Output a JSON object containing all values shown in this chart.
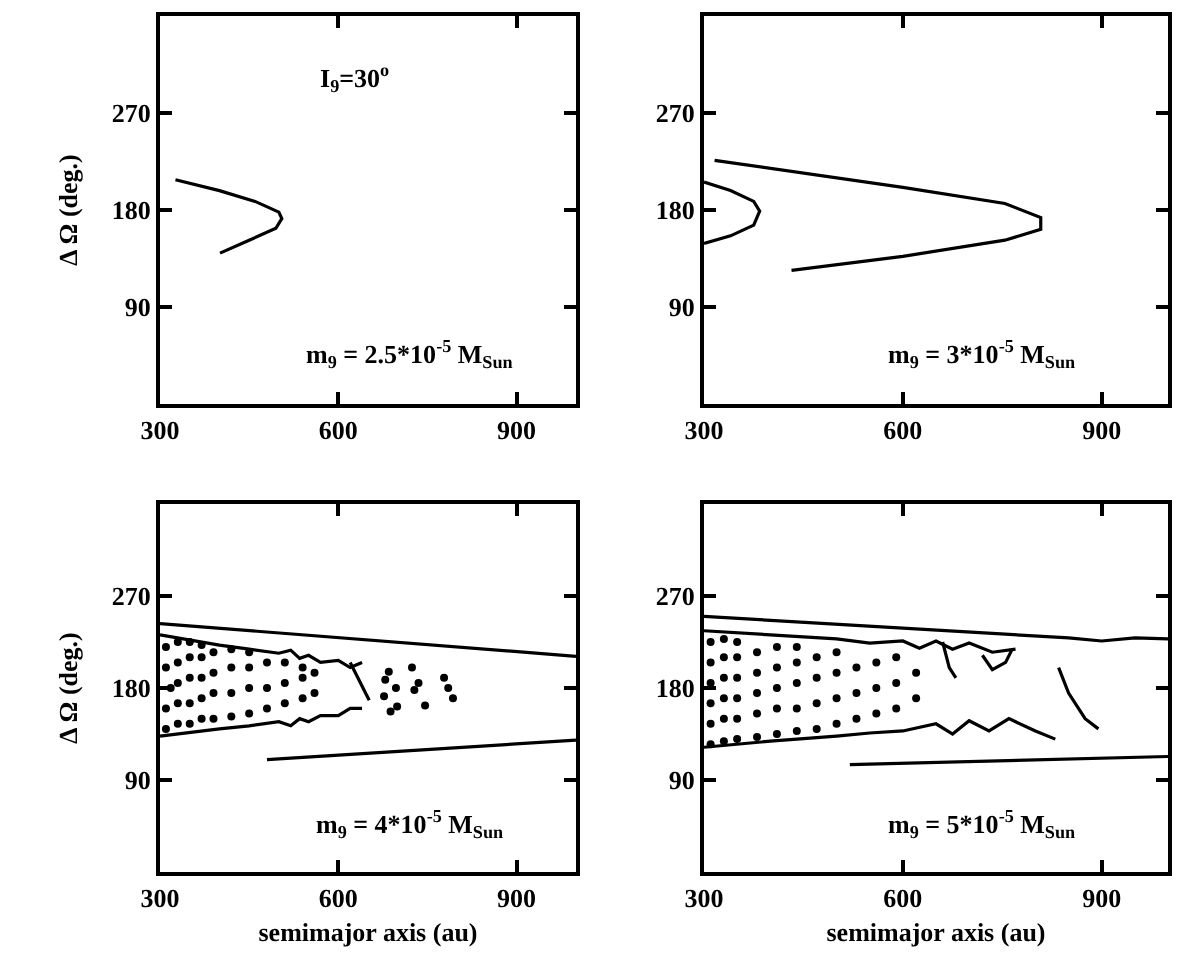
{
  "chart_data": [
    {
      "type": "line",
      "ylabel": "Δ Ω (deg.)",
      "xlim": [
        300,
        1000
      ],
      "xticks": [
        300,
        600,
        900
      ],
      "ylim": [
        0,
        360
      ],
      "yticks": [
        90,
        180,
        270
      ],
      "grid": false,
      "annotations": [
        "I$_{9}$=30$^{o}$",
        "m$_{9}$ = 2.5*10$^{-5}$ M$_{Sun}$"
      ],
      "series": [
        {
          "color": "#000000",
          "marker": "none",
          "line_style": "solid",
          "x": [
            326,
            400,
            460,
            500,
            505,
            495,
            450,
            401
          ],
          "values": [
            208,
            198,
            188,
            178,
            172,
            163,
            152,
            140
          ]
        }
      ]
    },
    {
      "type": "line",
      "xlim": [
        300,
        1000
      ],
      "xticks": [
        300,
        600,
        900
      ],
      "ylim": [
        0,
        360
      ],
      "yticks": [
        90,
        180,
        270
      ],
      "grid": false,
      "annotations": [
        "m$_{9}$ = 3*10$^{-5}$ M$_{Sun}$"
      ],
      "series": [
        {
          "color": "#000000",
          "marker": "none",
          "line_style": "solid",
          "x": [
            300,
            340,
            375,
            384,
            375,
            340,
            300
          ],
          "values": [
            206,
            198,
            188,
            179,
            166,
            156,
            149
          ]
        },
        {
          "color": "#000000",
          "marker": "none",
          "line_style": "solid",
          "x": [
            316,
            600,
            754,
            808,
            808,
            754,
            600,
            432
          ],
          "values": [
            226,
            201,
            186,
            173,
            162,
            152,
            137,
            124
          ]
        }
      ]
    },
    {
      "type": "line",
      "xlabel": "semimajor axis (au)",
      "ylabel": "Δ Ω (deg.)",
      "xlim": [
        300,
        1000
      ],
      "xticks": [
        300,
        600,
        900
      ],
      "ylim": [
        0,
        360
      ],
      "yticks": [
        90,
        180,
        270
      ],
      "grid": false,
      "annotations": [
        "m$_{9}$ = 4*10$^{-5}$ M$_{Sun}$"
      ],
      "series": [
        {
          "color": "#000000",
          "marker": "none",
          "line_style": "solid",
          "x": [
            300,
            1000
          ],
          "values": [
            243,
            211
          ]
        },
        {
          "color": "#000000",
          "marker": "none",
          "line_style": "solid",
          "x": [
            480,
            1000
          ],
          "values": [
            110,
            129
          ]
        },
        {
          "color": "#000000",
          "marker": "none",
          "line_style": "solid",
          "x": [
            300,
            400,
            450,
            500,
            520,
            535,
            550,
            570,
            600,
            620,
            640
          ],
          "values": [
            232,
            222,
            218,
            214,
            217,
            209,
            212,
            205,
            207,
            200,
            205
          ]
        },
        {
          "color": "#000000",
          "marker": "none",
          "line_style": "solid",
          "x": [
            300,
            400,
            450,
            500,
            520,
            535,
            550,
            570,
            600,
            620,
            640
          ],
          "values": [
            133,
            140,
            143,
            147,
            143,
            150,
            147,
            153,
            153,
            160,
            160
          ]
        },
        {
          "color": "#000000",
          "marker": "none",
          "line_style": "solid",
          "x": [
            620,
            652
          ],
          "values": [
            205,
            168
          ]
        },
        {
          "type": "scatter",
          "color": "#000000",
          "marker": "circle",
          "x": [
            685,
            697,
            699,
            688,
            677,
            679,
            724,
            735,
            746,
            728,
            778,
            785,
            793
          ],
          "values": [
            196,
            180,
            162,
            157,
            172,
            188,
            200,
            185,
            163,
            178,
            190,
            180,
            170
          ]
        },
        {
          "type": "scatter",
          "color": "#000000",
          "marker": "circle",
          "x": [
            310,
            310,
            318,
            310,
            310,
            330,
            330,
            330,
            330,
            330,
            350,
            350,
            350,
            350,
            350,
            370,
            370,
            370,
            370,
            370,
            390,
            390,
            390,
            390,
            420,
            420,
            420,
            420,
            450,
            450,
            450,
            450,
            480,
            480,
            480,
            510,
            510,
            510,
            540,
            540,
            540,
            560,
            560
          ],
          "values": [
            140,
            160,
            180,
            200,
            220,
            145,
            165,
            185,
            205,
            225,
            145,
            165,
            190,
            210,
            225,
            150,
            170,
            190,
            210,
            222,
            150,
            175,
            195,
            215,
            152,
            175,
            200,
            218,
            155,
            180,
            200,
            215,
            160,
            180,
            205,
            165,
            185,
            205,
            170,
            190,
            200,
            175,
            195
          ]
        }
      ]
    },
    {
      "type": "line",
      "xlabel": "semimajor axis (au)",
      "xlim": [
        300,
        1000
      ],
      "xticks": [
        300,
        600,
        900
      ],
      "ylim": [
        0,
        360
      ],
      "yticks": [
        90,
        180,
        270
      ],
      "grid": false,
      "annotations": [
        "m$_{9}$ = 5*10$^{-5}$ M$_{Sun}$"
      ],
      "series": [
        {
          "color": "#000000",
          "marker": "none",
          "line_style": "solid",
          "x": [
            300,
            850,
            900,
            950,
            1000
          ],
          "values": [
            250,
            229,
            226,
            229,
            228
          ]
        },
        {
          "color": "#000000",
          "marker": "none",
          "line_style": "solid",
          "x": [
            520,
            1000
          ],
          "values": [
            105,
            113
          ]
        },
        {
          "color": "#000000",
          "marker": "none",
          "line_style": "solid",
          "x": [
            300,
            400,
            500,
            550,
            600,
            625,
            650,
            675,
            700,
            735,
            770
          ],
          "values": [
            236,
            232,
            228,
            224,
            226,
            219,
            226,
            218,
            224,
            215,
            218
          ]
        },
        {
          "color": "#000000",
          "marker": "none",
          "line_style": "solid",
          "x": [
            300,
            400,
            500,
            550,
            600,
            650,
            675,
            700,
            730,
            760,
            800,
            830
          ],
          "values": [
            122,
            128,
            133,
            136,
            138,
            145,
            135,
            148,
            138,
            150,
            138,
            130
          ]
        },
        {
          "color": "#000000",
          "marker": "none",
          "line_style": "solid",
          "x": [
            660,
            670,
            680
          ],
          "values": [
            225,
            200,
            190
          ]
        },
        {
          "color": "#000000",
          "marker": "none",
          "line_style": "solid",
          "x": [
            720,
            735,
            755,
            765
          ],
          "values": [
            212,
            198,
            205,
            218
          ]
        },
        {
          "color": "#000000",
          "marker": "none",
          "line_style": "solid",
          "x": [
            835,
            850,
            875,
            895
          ],
          "values": [
            200,
            175,
            150,
            140
          ]
        },
        {
          "type": "scatter",
          "color": "#000000",
          "marker": "circle",
          "x": [
            310,
            310,
            310,
            310,
            310,
            310,
            330,
            330,
            330,
            330,
            330,
            330,
            350,
            350,
            350,
            350,
            350,
            350,
            380,
            380,
            380,
            380,
            380,
            410,
            410,
            410,
            410,
            410,
            440,
            440,
            440,
            440,
            440,
            470,
            470,
            470,
            470,
            500,
            500,
            500,
            500,
            530,
            530,
            530,
            560,
            560,
            560,
            590,
            590,
            590,
            620,
            620
          ],
          "values": [
            125,
            145,
            165,
            185,
            205,
            225,
            128,
            150,
            170,
            190,
            210,
            228,
            130,
            150,
            170,
            190,
            210,
            225,
            132,
            155,
            175,
            195,
            215,
            135,
            160,
            180,
            200,
            220,
            138,
            160,
            185,
            205,
            220,
            140,
            165,
            190,
            210,
            145,
            170,
            195,
            215,
            150,
            175,
            200,
            155,
            180,
            205,
            160,
            185,
            210,
            170,
            195
          ]
        }
      ]
    }
  ]
}
